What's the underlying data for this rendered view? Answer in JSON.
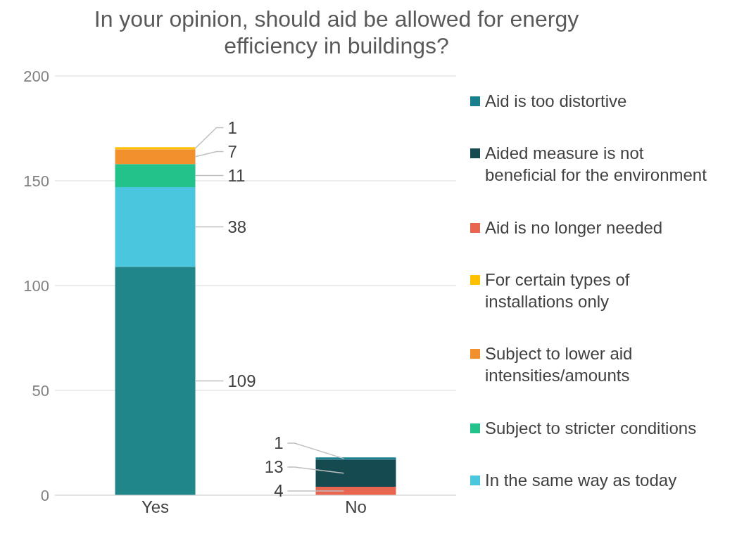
{
  "chart_data": {
    "type": "bar",
    "title": "In your opinion, should aid be allowed for energy efficiency in buildings?",
    "categories": [
      "Yes",
      "No"
    ],
    "stacked": true,
    "series": [
      {
        "color": "#21868a",
        "values": [
          109,
          null
        ]
      },
      {
        "name": "In the same way as today",
        "color": "#4bc6df",
        "values": [
          38,
          null
        ]
      },
      {
        "name": "Subject to stricter conditions",
        "color": "#23c28a",
        "values": [
          11,
          null
        ]
      },
      {
        "name": "Subject to lower aid intensities/amounts",
        "color": "#f1902c",
        "values": [
          7,
          null
        ]
      },
      {
        "name": "For certain types of installations only",
        "color": "#ffc000",
        "values": [
          1,
          null
        ]
      },
      {
        "name": "Aid is no longer needed",
        "color": "#e8664f",
        "values": [
          null,
          4
        ]
      },
      {
        "name": "Aided measure is not beneficial for the environment",
        "color": "#154a51",
        "values": [
          null,
          13
        ]
      },
      {
        "name": "Aid is too distortive",
        "color": "#19808f",
        "values": [
          null,
          1
        ]
      }
    ],
    "ylim": [
      0,
      200
    ],
    "yticks": [
      0,
      50,
      100,
      150,
      200
    ],
    "grid": "y",
    "legend": "right",
    "data_labels": true
  }
}
